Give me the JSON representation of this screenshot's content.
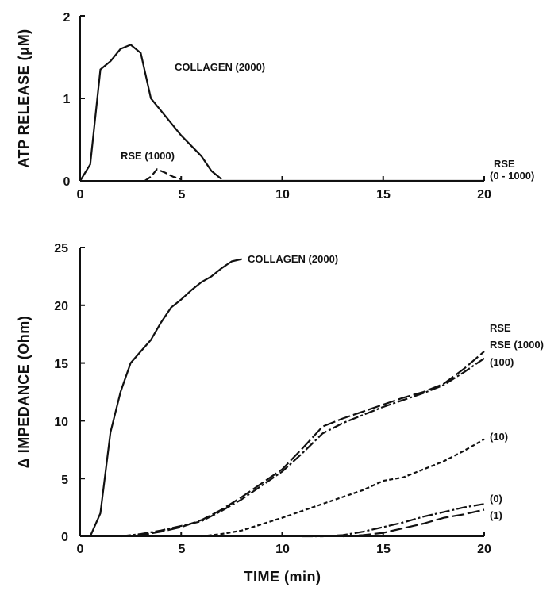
{
  "chart_data": [
    {
      "type": "line",
      "title": "",
      "xlabel": "",
      "ylabel": "ATP RELEASE (μM)",
      "xlim": [
        0,
        20
      ],
      "ylim": [
        0,
        2
      ],
      "xticks": [
        "0",
        "5",
        "10",
        "15",
        "20"
      ],
      "yticks": [
        "0",
        "1",
        "2"
      ],
      "grid": false,
      "series": [
        {
          "style": "solid",
          "x": [
            0,
            0.5,
            1,
            1.5,
            2,
            2.5,
            3,
            3.5,
            4,
            5,
            6,
            6.5,
            7
          ],
          "y": [
            0,
            0.2,
            1.35,
            1.45,
            1.6,
            1.65,
            1.55,
            1.0,
            0.85,
            0.55,
            0.3,
            0.12,
            0.02
          ]
        },
        {
          "style": "dashed",
          "x": [
            3.2,
            3.5,
            3.8,
            4.2,
            4.6,
            5
          ],
          "y": [
            0,
            0.05,
            0.14,
            0.1,
            0.05,
            0.02
          ]
        },
        {
          "style": "solid",
          "x": [
            7,
            20
          ],
          "y": [
            0,
            0
          ]
        }
      ],
      "annotations": [
        "COLLAGEN (2000)",
        "RSE (1000)",
        "RSE",
        "(0 - 1000)"
      ]
    },
    {
      "type": "line",
      "title": "",
      "xlabel": "TIME (min)",
      "ylabel": "Δ IMPEDANCE (Ohm)",
      "xlim": [
        0,
        20
      ],
      "ylim": [
        0,
        25
      ],
      "xticks": [
        "0",
        "5",
        "10",
        "15",
        "20"
      ],
      "yticks": [
        "0",
        "5",
        "10",
        "15",
        "20",
        "25"
      ],
      "grid": false,
      "series": [
        {
          "label": "COLLAGEN (2000)",
          "style": "solid",
          "x": [
            0.5,
            1,
            1.5,
            2,
            2.5,
            3,
            3.5,
            4,
            4.5,
            5,
            5.5,
            6,
            6.5,
            7,
            7.5,
            8
          ],
          "y": [
            0,
            2,
            9,
            12.5,
            15,
            16,
            17,
            18.5,
            19.8,
            20.5,
            21.3,
            22,
            22.5,
            23.2,
            23.8,
            24
          ]
        },
        {
          "label": "RSE (1000)",
          "style": "long-dash",
          "x": [
            2,
            3,
            4,
            5,
            6,
            7,
            8,
            9,
            10,
            11,
            12,
            13,
            14,
            15,
            16,
            17,
            18,
            19,
            20
          ],
          "y": [
            0,
            0.1,
            0.4,
            0.8,
            1.4,
            2.3,
            3.4,
            4.6,
            5.8,
            7.6,
            9.5,
            10.2,
            10.8,
            11.4,
            12,
            12.5,
            13.2,
            14.5,
            16
          ]
        },
        {
          "label": "(100)",
          "style": "dash-dot",
          "x": [
            2,
            3,
            4,
            5,
            6,
            7,
            8,
            9,
            10,
            11,
            12,
            13,
            14,
            15,
            16,
            17,
            18,
            19,
            20
          ],
          "y": [
            0,
            0.2,
            0.5,
            0.9,
            1.3,
            2.2,
            3.2,
            4.4,
            5.6,
            7.2,
            8.9,
            9.8,
            10.5,
            11.2,
            11.8,
            12.4,
            13.1,
            14.2,
            15.4
          ]
        },
        {
          "label": "(10)",
          "style": "short-dash",
          "x": [
            6,
            7,
            8,
            10,
            12,
            14,
            15,
            16,
            17,
            18,
            19,
            20
          ],
          "y": [
            0,
            0.2,
            0.5,
            1.6,
            2.8,
            4,
            4.8,
            5.1,
            5.8,
            6.5,
            7.4,
            8.4
          ]
        },
        {
          "label": "(0)",
          "style": "dash-dot",
          "x": [
            11,
            12,
            13,
            14,
            15,
            16,
            17,
            18,
            19,
            20
          ],
          "y": [
            0,
            0,
            0.1,
            0.4,
            0.8,
            1.2,
            1.7,
            2.1,
            2.5,
            2.8
          ]
        },
        {
          "label": "(1)",
          "style": "long-dash",
          "x": [
            13,
            14,
            15,
            16,
            17,
            18,
            19,
            20
          ],
          "y": [
            0,
            0.1,
            0.3,
            0.7,
            1.1,
            1.6,
            1.9,
            2.3
          ]
        }
      ],
      "annotations": [
        "RSE"
      ]
    }
  ]
}
